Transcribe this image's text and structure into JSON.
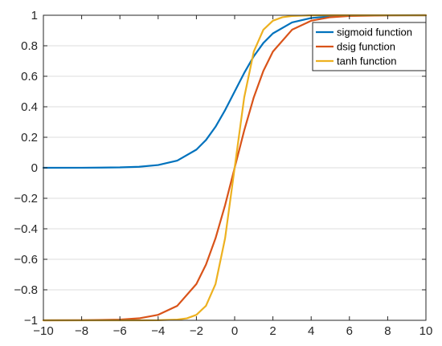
{
  "chart_data": {
    "type": "line",
    "title": "",
    "xlabel": "",
    "ylabel": "",
    "xlim": [
      -10,
      10
    ],
    "ylim": [
      -1,
      1
    ],
    "x_ticks": [
      -10,
      -8,
      -6,
      -4,
      -2,
      0,
      2,
      4,
      6,
      8,
      10
    ],
    "y_ticks": [
      -1,
      -0.8,
      -0.6,
      -0.4,
      -0.2,
      0,
      0.2,
      0.4,
      0.6,
      0.8,
      1
    ],
    "x_tick_labels": [
      "−10",
      "−8",
      "−6",
      "−4",
      "−2",
      "0",
      "2",
      "4",
      "6",
      "8",
      "10"
    ],
    "y_tick_labels": [
      "−1",
      "−0.8",
      "−0.6",
      "−0.4",
      "−0.2",
      "0",
      "0.2",
      "0.4",
      "0.6",
      "0.8",
      "1"
    ],
    "grid": "horizontal",
    "legend_position": "top-right",
    "series": [
      {
        "name": "sigmoid function",
        "color": "#0072BD",
        "x": [
          -10,
          -8,
          -6,
          -5,
          -4,
          -3,
          -2,
          -1.5,
          -1,
          -0.5,
          0,
          0.5,
          1,
          1.5,
          2,
          3,
          4,
          5,
          6,
          8,
          10
        ],
        "y": [
          0.0,
          0.0003,
          0.0025,
          0.0067,
          0.018,
          0.047,
          0.119,
          0.182,
          0.269,
          0.378,
          0.5,
          0.622,
          0.731,
          0.818,
          0.881,
          0.953,
          0.982,
          0.993,
          0.9975,
          0.9997,
          1.0
        ]
      },
      {
        "name": "dsig function",
        "color": "#D95319",
        "x": [
          -10,
          -8,
          -6,
          -5,
          -4,
          -3,
          -2,
          -1.5,
          -1,
          -0.5,
          0,
          0.5,
          1,
          1.5,
          2,
          3,
          4,
          5,
          6,
          8,
          10
        ],
        "y": [
          -1.0,
          -0.9993,
          -0.995,
          -0.987,
          -0.964,
          -0.905,
          -0.762,
          -0.635,
          -0.462,
          -0.245,
          0.0,
          0.245,
          0.462,
          0.635,
          0.762,
          0.905,
          0.964,
          0.987,
          0.995,
          0.9993,
          1.0
        ]
      },
      {
        "name": "tanh function",
        "color": "#EDB120",
        "x": [
          -10,
          -8,
          -6,
          -5,
          -4,
          -3,
          -2.5,
          -2,
          -1.5,
          -1,
          -0.5,
          0,
          0.5,
          1,
          1.5,
          2,
          2.5,
          3,
          4,
          5,
          6,
          8,
          10
        ],
        "y": [
          -1.0,
          -1.0,
          -1.0,
          -0.9999,
          -0.9993,
          -0.995,
          -0.987,
          -0.964,
          -0.905,
          -0.762,
          -0.462,
          0.0,
          0.462,
          0.762,
          0.905,
          0.964,
          0.987,
          0.995,
          0.9993,
          0.9999,
          1.0,
          1.0,
          1.0
        ]
      }
    ]
  }
}
